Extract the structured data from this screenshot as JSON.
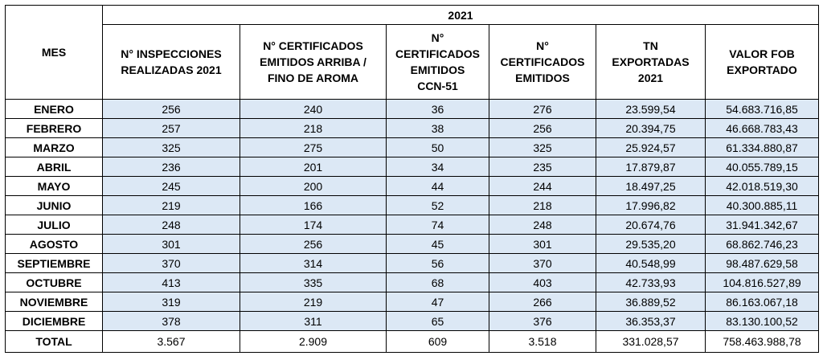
{
  "table": {
    "year": "2021",
    "mes_header": "MES",
    "headers": [
      "N° INSPECCIONES\nREALIZADAS 2021",
      "N° CERTIFICADOS\nEMITIDOS ARRIBA /\nFINO DE AROMA",
      "N°\nCERTIFICADOS\nEMITIDOS\nCCN-51",
      "N°\nCERTIFICADOS\nEMITIDOS",
      "TN\nEXPORTADAS\n2021",
      "VALOR FOB\nEXPORTADO"
    ],
    "rows": [
      {
        "month": "ENERO",
        "cells": [
          "256",
          "240",
          "36",
          "276",
          "23.599,54",
          "54.683.716,85"
        ]
      },
      {
        "month": "FEBRERO",
        "cells": [
          "257",
          "218",
          "38",
          "256",
          "20.394,75",
          "46.668.783,43"
        ]
      },
      {
        "month": "MARZO",
        "cells": [
          "325",
          "275",
          "50",
          "325",
          "25.924,57",
          "61.334.880,87"
        ]
      },
      {
        "month": "ABRIL",
        "cells": [
          "236",
          "201",
          "34",
          "235",
          "17.879,87",
          "40.055.789,15"
        ]
      },
      {
        "month": "MAYO",
        "cells": [
          "245",
          "200",
          "44",
          "244",
          "18.497,25",
          "42.018.519,30"
        ]
      },
      {
        "month": "JUNIO",
        "cells": [
          "219",
          "166",
          "52",
          "218",
          "17.996,82",
          "40.300.885,11"
        ]
      },
      {
        "month": "JULIO",
        "cells": [
          "248",
          "174",
          "74",
          "248",
          "20.674,76",
          "31.941.342,67"
        ]
      },
      {
        "month": "AGOSTO",
        "cells": [
          "301",
          "256",
          "45",
          "301",
          "29.535,20",
          "68.862.746,23"
        ]
      },
      {
        "month": "SEPTIEMBRE",
        "cells": [
          "370",
          "314",
          "56",
          "370",
          "40.548,99",
          "98.487.629,58"
        ]
      },
      {
        "month": "OCTUBRE",
        "cells": [
          "413",
          "335",
          "68",
          "403",
          "42.733,93",
          "104.816.527,89"
        ]
      },
      {
        "month": "NOVIEMBRE",
        "cells": [
          "319",
          "219",
          "47",
          "266",
          "36.889,52",
          "86.163.067,18"
        ]
      },
      {
        "month": "DICIEMBRE",
        "cells": [
          "378",
          "311",
          "65",
          "376",
          "36.353,37",
          "83.130.100,52"
        ]
      }
    ],
    "total": {
      "label": "TOTAL",
      "cells": [
        "3.567",
        "2.909",
        "609",
        "3.518",
        "331.028,57",
        "758.463.988,78"
      ]
    }
  }
}
